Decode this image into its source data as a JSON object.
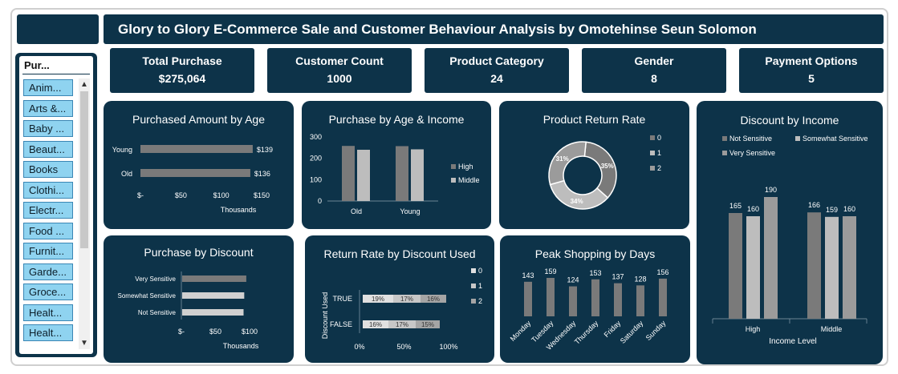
{
  "title": "Glory to Glory E-Commerce Sale and Customer Behaviour Analysis by Omotehinse Seun Solomon",
  "slicer": {
    "title": "Pur...",
    "items": [
      "Anim...",
      "Arts &...",
      "Baby ...",
      "Beaut...",
      "Books",
      "Clothi...",
      "Electr...",
      "Food ...",
      "Furnit...",
      "Garde...",
      "Groce...",
      "Healt...",
      "Healt..."
    ]
  },
  "kpis": [
    {
      "label": "Total Purchase",
      "value": "$275,064"
    },
    {
      "label": "Customer Count",
      "value": "1000"
    },
    {
      "label": "Product Category",
      "value": "24"
    },
    {
      "label": "Gender",
      "value": "8"
    },
    {
      "label": "Payment Options",
      "value": "5"
    }
  ],
  "colors": {
    "dark": "#0d3349",
    "grey1": "#7a7a7a",
    "grey2": "#bdbdbd",
    "grey3": "#9b9b9b"
  },
  "chart_data": [
    {
      "id": "purchased_amount_by_age",
      "type": "bar",
      "orientation": "horizontal",
      "title": "Purchased Amount by Age",
      "categories": [
        "Young",
        "Old"
      ],
      "values": [
        139,
        136
      ],
      "data_labels": [
        "$139",
        "$136"
      ],
      "xlabel": "Thousands",
      "xticks": [
        "$-",
        "$50",
        "$100",
        "$150"
      ],
      "xlim": [
        0,
        150
      ]
    },
    {
      "id": "purchase_by_age_income",
      "type": "bar",
      "title": "Purchase by Age & Income",
      "categories": [
        "Old",
        "Young"
      ],
      "series": [
        {
          "name": "High",
          "values": [
            258,
            257
          ]
        },
        {
          "name": "Middle",
          "values": [
            240,
            242
          ]
        }
      ],
      "yticks": [
        "0",
        "100",
        "200",
        "300"
      ],
      "ylim": [
        0,
        300
      ],
      "legend": "right"
    },
    {
      "id": "product_return_rate",
      "type": "pie",
      "donut": true,
      "title": "Product Return Rate",
      "categories": [
        "0",
        "1",
        "2"
      ],
      "values": [
        35,
        34,
        31
      ],
      "data_labels": [
        "35%",
        "34%",
        "31%"
      ],
      "legend": "right"
    },
    {
      "id": "discount_by_income",
      "type": "bar",
      "title": "Discount by Income",
      "categories": [
        "High",
        "Middle"
      ],
      "series": [
        {
          "name": "Not Sensitive",
          "values": [
            165,
            166
          ]
        },
        {
          "name": "Somewhat Sensitive",
          "values": [
            160,
            159
          ]
        },
        {
          "name": "Very Sensitive",
          "values": [
            190,
            160
          ]
        }
      ],
      "xlabel": "Income Level",
      "legend": "top"
    },
    {
      "id": "purchase_by_discount",
      "type": "bar",
      "orientation": "horizontal",
      "title": "Purchase by Discount",
      "categories": [
        "Very Sensitive",
        "Somewhat Sensitive",
        "Not Sensitive"
      ],
      "values": [
        94,
        91,
        90
      ],
      "xlabel": "Thousands",
      "xticks": [
        "$-",
        "$50",
        "$100"
      ],
      "xlim": [
        0,
        100
      ]
    },
    {
      "id": "return_rate_by_discount_used",
      "type": "bar",
      "orientation": "horizontal",
      "stacked": true,
      "title": "Return Rate by Discount Used",
      "ylabel": "Discount Used",
      "categories": [
        "TRUE",
        "FALSE"
      ],
      "series": [
        {
          "name": "0",
          "values": [
            19,
            16
          ]
        },
        {
          "name": "1",
          "values": [
            17,
            17
          ]
        },
        {
          "name": "2",
          "values": [
            16,
            15
          ]
        }
      ],
      "xticks": [
        "0%",
        "50%",
        "100%"
      ],
      "xlim": [
        0,
        100
      ],
      "legend": "right"
    },
    {
      "id": "peak_shopping_by_days",
      "type": "bar",
      "title": "Peak Shopping  by Days",
      "categories": [
        "Monday",
        "Tuesday",
        "Wednesday",
        "Thursday",
        "Friday",
        "Saturday",
        "Sunday"
      ],
      "values": [
        143,
        159,
        124,
        153,
        137,
        128,
        156
      ]
    }
  ]
}
